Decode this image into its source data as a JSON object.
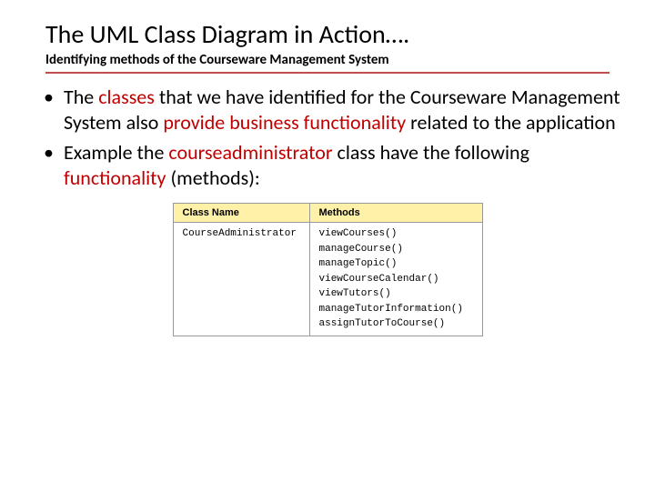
{
  "title": "The UML Class Diagram in Action….",
  "subtitle": "Identifying methods of the Courseware Management System",
  "bullets": {
    "b1": {
      "p1": "The ",
      "p2": "classes ",
      "p3": "that we have identified for the Courseware Management System also ",
      "p4": "provide business functionality ",
      "p5": "related to the application"
    },
    "b2": {
      "p1": "Example the ",
      "p2": "courseadministrator ",
      "p3": "class have the following ",
      "p4": "functionality ",
      "p5": "(methods):"
    }
  },
  "table": {
    "headers": {
      "col1": "Class Name",
      "col2": "Methods"
    },
    "row": {
      "classname": "CourseAdministrator",
      "m0": "viewCourses()",
      "m1": "manageCourse()",
      "m2": "manageTopic()",
      "m3": "viewCourseCalendar()",
      "m4": "viewTutors()",
      "m5": "manageTutorInformation()",
      "m6": "assignTutorToCourse()"
    }
  },
  "colors": {
    "underline": "#c0504d",
    "highlight_text": "#c00000",
    "header_bg": "#fff2a8",
    "border": "#999999",
    "background": "#ffffff"
  },
  "fonts": {
    "title_size": 28,
    "subtitle_size": 15,
    "body_size": 22,
    "table_header_size": 11,
    "table_cell_size": 11
  }
}
